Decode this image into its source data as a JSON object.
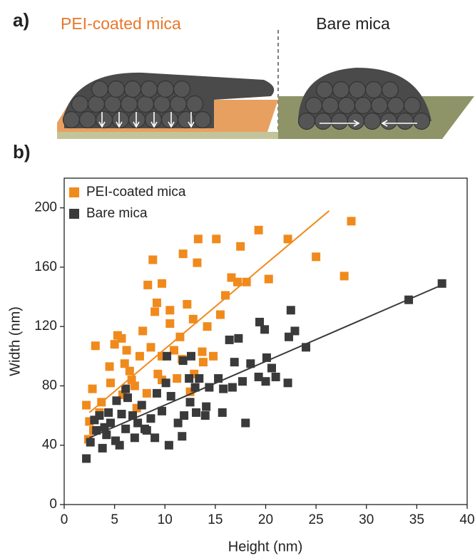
{
  "panel_a": {
    "label": "a)",
    "left_label": "PEI-coated mica",
    "right_label": "Bare mica"
  },
  "panel_b": {
    "label": "b)"
  },
  "chart_data": {
    "type": "scatter",
    "x_label": "Height (nm)",
    "y_label": "Width (nm)",
    "xlim": [
      0,
      40
    ],
    "ylim": [
      0,
      220
    ],
    "xticks": [
      0,
      5,
      10,
      15,
      20,
      25,
      30,
      35,
      40
    ],
    "yticks": [
      0,
      40,
      80,
      120,
      160,
      200
    ],
    "legend": "upper-left",
    "marker": "square",
    "series": [
      {
        "name": "PEI-coated mica",
        "color": "#f08a1c",
        "x": [
          28.5,
          27.8,
          25,
          22.2,
          20.3,
          19.3,
          17.5,
          18.1,
          17.2,
          15.1,
          13.3,
          13.2,
          11.8,
          12.2,
          12.8,
          14.2,
          15.5,
          16.0,
          16.6,
          9.7,
          8.3,
          8.8,
          10.5,
          10.5,
          9.2,
          9.0,
          11.5,
          10.9,
          11.7,
          13.7,
          12.9,
          13.8,
          11.2,
          8.6,
          9.3,
          9.7,
          7.8,
          7.5,
          6.5,
          7.0,
          6.0,
          5.7,
          5.3,
          5.0,
          4.5,
          3.1,
          6.2,
          6.7,
          5.8,
          2.8,
          2.2,
          2.5,
          2.9,
          3.7,
          4.6,
          3.5,
          2.4,
          8.2,
          7.2,
          12.5,
          14.8,
          9.7
        ],
        "values": [
          191,
          154,
          167,
          179,
          152,
          185,
          174,
          150,
          150,
          179,
          179,
          163,
          169,
          135,
          125,
          120,
          128,
          141,
          153,
          149,
          148,
          165,
          131,
          122,
          136,
          130,
          113,
          104,
          98,
          103,
          88,
          96,
          85,
          106,
          88,
          100,
          117,
          100,
          90,
          80,
          95,
          112,
          114,
          108,
          93,
          107,
          104,
          84,
          74,
          78,
          67,
          56,
          50,
          69,
          82,
          62,
          44,
          75,
          65,
          76,
          100,
          84
        ]
      },
      {
        "name": "Bare mica",
        "color": "#3a3a3a",
        "x": [
          37.5,
          34.2,
          24,
          22.5,
          22.9,
          22.3,
          22.2,
          20.1,
          19.4,
          19.9,
          20.6,
          18,
          17.3,
          16.4,
          16.9,
          18.5,
          19.3,
          17.7,
          16.7,
          15.3,
          15.8,
          14.4,
          13.4,
          14.1,
          13.0,
          12.5,
          13.1,
          11.9,
          11.3,
          12.4,
          12.6,
          11.8,
          10.2,
          10.1,
          10.6,
          9.7,
          9.2,
          8.6,
          8.0,
          7.7,
          7.3,
          6.3,
          6.1,
          5.7,
          5.1,
          4.6,
          4.2,
          3.5,
          3.2,
          2.6,
          2.2,
          3.8,
          4.4,
          5.5,
          6.8,
          7.0,
          9.0,
          8.2,
          10.4,
          11.7,
          20.0,
          21.0,
          15.7,
          14.0,
          5.2,
          6.1,
          3.0,
          4.0
        ],
        "values": [
          149,
          138,
          106,
          131,
          117,
          113,
          82,
          99,
          123,
          118,
          92,
          55,
          112,
          111,
          96,
          95,
          86,
          83,
          79,
          85,
          78,
          79,
          85,
          66,
          79,
          69,
          62,
          60,
          55,
          85,
          100,
          97,
          100,
          82,
          73,
          63,
          75,
          58,
          51,
          67,
          55,
          72,
          51,
          61,
          43,
          55,
          47,
          60,
          50,
          42,
          31,
          38,
          62,
          40,
          60,
          45,
          45,
          50,
          40,
          46,
          83,
          86,
          62,
          60,
          70,
          78,
          57,
          52
        ]
      }
    ],
    "fits": [
      {
        "color": "#f08a1c",
        "x": [
          2.5,
          26.3
        ],
        "values": [
          62,
          198
        ]
      },
      {
        "color": "#3a3a3a",
        "x": [
          2.5,
          37.5
        ],
        "values": [
          45,
          148
        ]
      }
    ]
  }
}
